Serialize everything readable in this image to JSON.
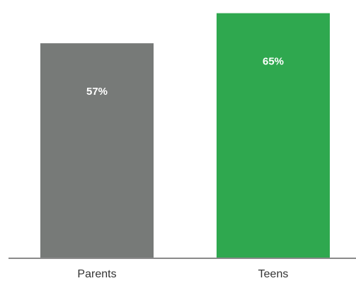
{
  "chart_data": {
    "type": "bar",
    "categories": [
      "Parents",
      "Teens"
    ],
    "values": [
      57,
      65
    ],
    "value_labels": [
      "57%",
      "65%"
    ],
    "colors": [
      "#777a78",
      "#2fa84f"
    ],
    "axis_color": "#8a8a8a",
    "title": "",
    "xlabel": "",
    "ylabel": "",
    "ylim": [
      0,
      67
    ],
    "grid": false,
    "legend": "none"
  }
}
